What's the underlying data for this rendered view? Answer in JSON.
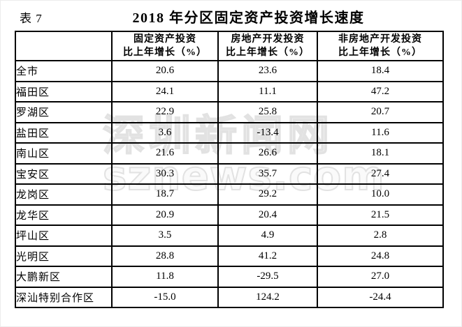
{
  "page": {
    "table_label": "表 7",
    "title": "2018 年分区固定资产投资增长速度"
  },
  "watermark": {
    "line1": "深圳新闻网",
    "line2": "sznews.com"
  },
  "colors": {
    "background": "#ffffff",
    "text": "#000000",
    "table_border": "#000000",
    "watermark": "#e2e2e2"
  },
  "chart_data": {
    "type": "table",
    "caption": "表 7",
    "title": "2018 年分区固定资产投资增长速度",
    "row_header": "",
    "columns": [
      {
        "line1": "固定资产投资",
        "line2": "比上年增长（%）"
      },
      {
        "line1": "房地产开发投资",
        "line2": "比上年增长（%）"
      },
      {
        "line1": "非房地产开发投资",
        "line2": "比上年增长（%）"
      }
    ],
    "rows": [
      {
        "name": "全市",
        "values": [
          "20.6",
          "23.6",
          "18.4"
        ]
      },
      {
        "name": "福田区",
        "values": [
          "24.1",
          "11.1",
          "47.2"
        ]
      },
      {
        "name": "罗湖区",
        "values": [
          "22.9",
          "25.8",
          "20.7"
        ]
      },
      {
        "name": "盐田区",
        "values": [
          "3.6",
          "-13.4",
          "11.6"
        ]
      },
      {
        "name": "南山区",
        "values": [
          "21.6",
          "26.6",
          "18.1"
        ]
      },
      {
        "name": "宝安区",
        "values": [
          "30.3",
          "35.7",
          "27.4"
        ]
      },
      {
        "name": "龙岗区",
        "values": [
          "18.7",
          "29.2",
          "10.0"
        ]
      },
      {
        "name": "龙华区",
        "values": [
          "20.9",
          "20.4",
          "21.5"
        ]
      },
      {
        "name": "坪山区",
        "values": [
          "3.5",
          "4.9",
          "2.8"
        ]
      },
      {
        "name": "光明区",
        "values": [
          "28.8",
          "41.2",
          "24.8"
        ]
      },
      {
        "name": "大鹏新区",
        "values": [
          "11.8",
          "-29.5",
          "27.0"
        ]
      },
      {
        "name": "深汕特别合作区",
        "values": [
          "-15.0",
          "124.2",
          "-24.4"
        ]
      }
    ]
  }
}
